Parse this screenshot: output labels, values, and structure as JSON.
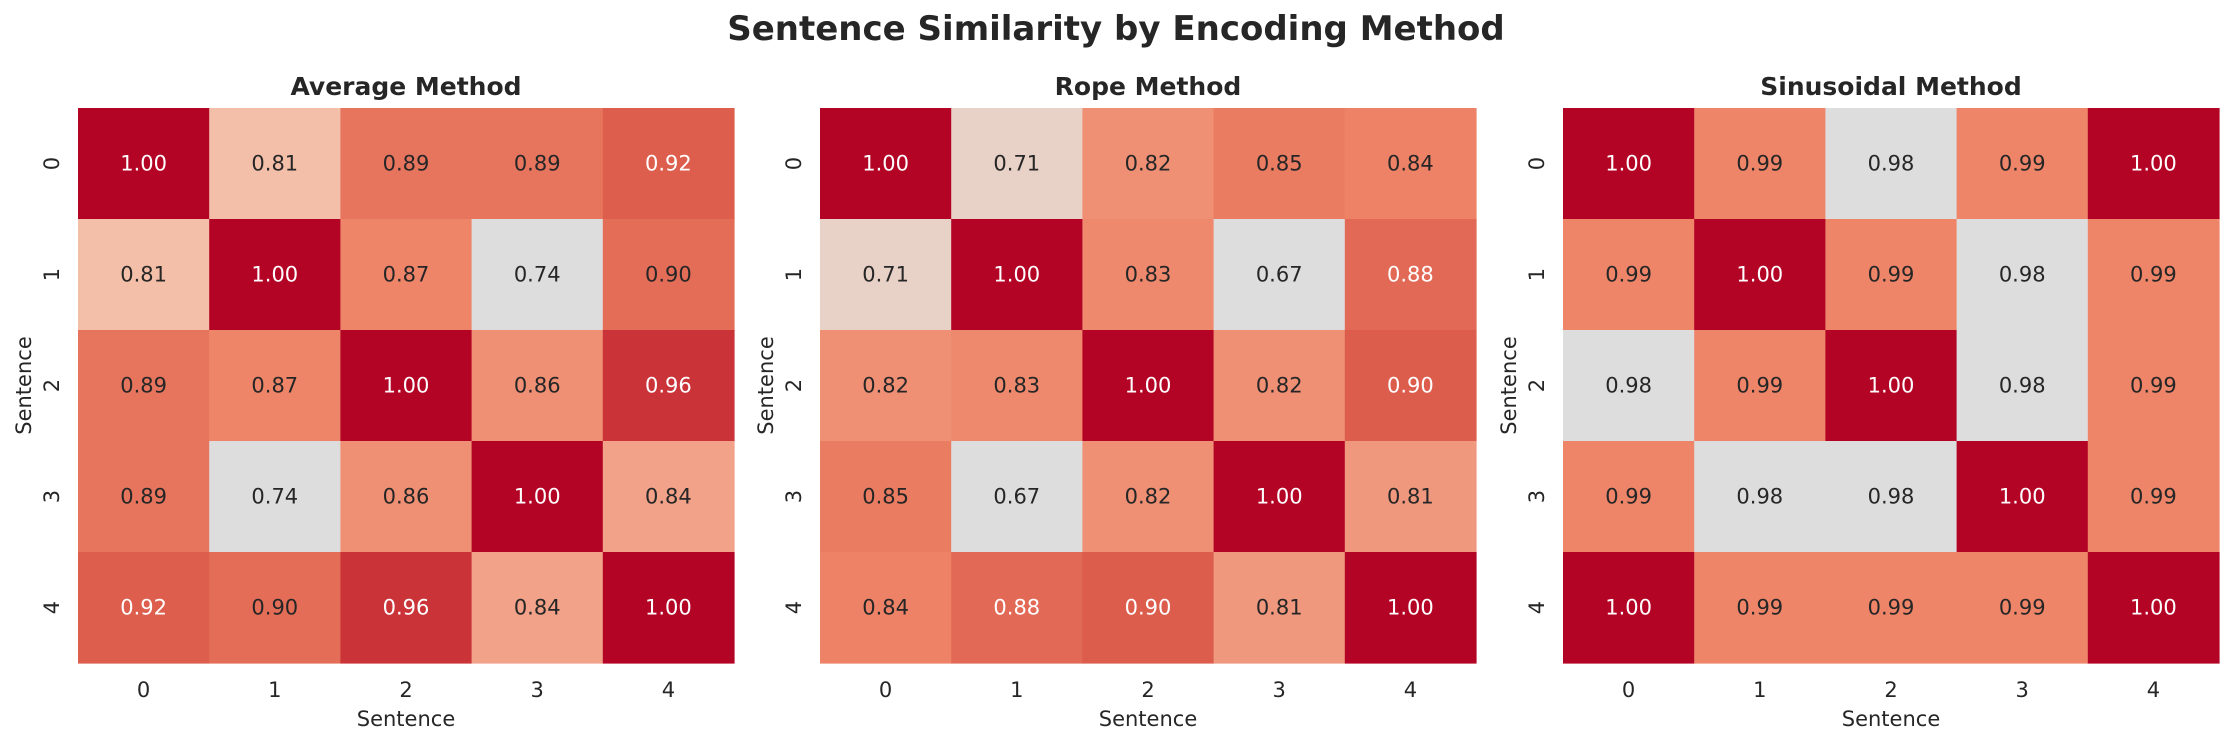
{
  "title": "Sentence Similarity by Encoding Method",
  "chart_data": [
    {
      "type": "heatmap",
      "title": "Average Method",
      "xlabel": "Sentence",
      "ylabel": "Sentence",
      "x_ticks": [
        "0",
        "1",
        "2",
        "3",
        "4"
      ],
      "y_ticks": [
        "0",
        "1",
        "2",
        "3",
        "4"
      ],
      "values": [
        [
          1.0,
          0.81,
          0.89,
          0.89,
          0.92
        ],
        [
          0.81,
          1.0,
          0.87,
          0.74,
          0.9
        ],
        [
          0.89,
          0.87,
          1.0,
          0.86,
          0.96
        ],
        [
          0.89,
          0.74,
          0.86,
          1.0,
          0.84
        ],
        [
          0.92,
          0.9,
          0.96,
          0.84,
          1.0
        ]
      ],
      "colorscale": "coolwarm",
      "colorbar": false
    },
    {
      "type": "heatmap",
      "title": "Rope Method",
      "xlabel": "Sentence",
      "ylabel": "Sentence",
      "x_ticks": [
        "0",
        "1",
        "2",
        "3",
        "4"
      ],
      "y_ticks": [
        "0",
        "1",
        "2",
        "3",
        "4"
      ],
      "values": [
        [
          1.0,
          0.71,
          0.82,
          0.85,
          0.84
        ],
        [
          0.71,
          1.0,
          0.83,
          0.67,
          0.88
        ],
        [
          0.82,
          0.83,
          1.0,
          0.82,
          0.9
        ],
        [
          0.85,
          0.67,
          0.82,
          1.0,
          0.81
        ],
        [
          0.84,
          0.88,
          0.9,
          0.81,
          1.0
        ]
      ],
      "colorscale": "coolwarm",
      "colorbar": false
    },
    {
      "type": "heatmap",
      "title": "Sinusoidal Method",
      "xlabel": "Sentence",
      "ylabel": "Sentence",
      "x_ticks": [
        "0",
        "1",
        "2",
        "3",
        "4"
      ],
      "y_ticks": [
        "0",
        "1",
        "2",
        "3",
        "4"
      ],
      "values": [
        [
          1.0,
          0.99,
          0.98,
          0.99,
          1.0
        ],
        [
          0.99,
          1.0,
          0.99,
          0.98,
          0.99
        ],
        [
          0.98,
          0.99,
          1.0,
          0.98,
          0.99
        ],
        [
          0.99,
          0.98,
          0.98,
          1.0,
          0.99
        ],
        [
          1.0,
          0.99,
          0.99,
          0.99,
          1.0
        ]
      ],
      "colorscale": "coolwarm",
      "colorbar": false
    }
  ]
}
